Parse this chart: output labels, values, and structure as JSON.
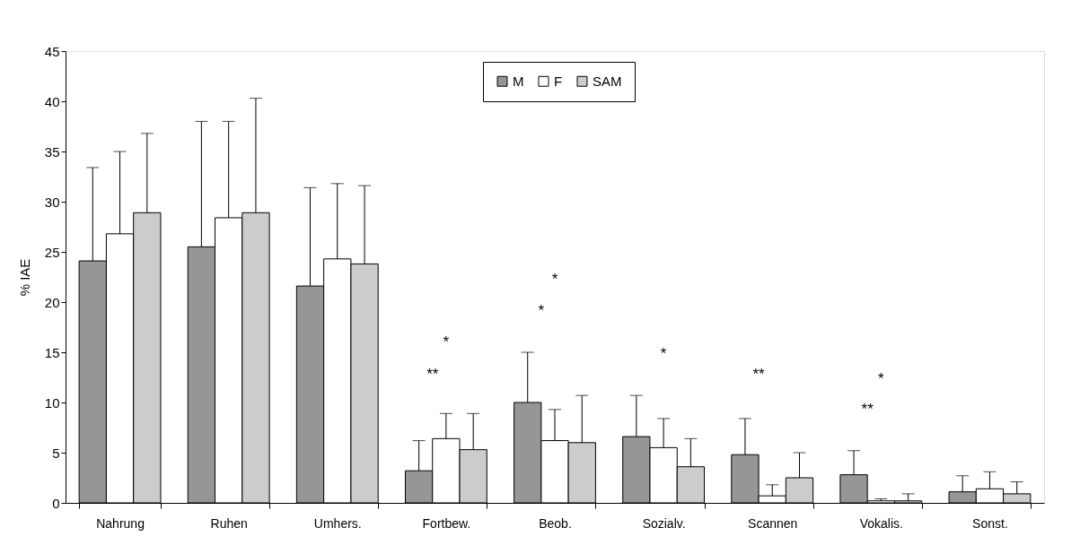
{
  "chart_data": {
    "type": "bar",
    "ylabel": "% IAE",
    "categories": [
      "Nahrung",
      "Ruhen",
      "Umhers.",
      "Fortbew.",
      "Beob.",
      "Sozialv.",
      "Scannen",
      "Vokalis.",
      "Sonst."
    ],
    "series": [
      {
        "name": "M",
        "color": "#969696",
        "values": [
          24.1,
          25.5,
          21.6,
          3.2,
          10.0,
          6.6,
          4.8,
          2.8,
          1.1
        ],
        "errors": [
          [
            24.1,
            33.4
          ],
          [
            25.5,
            38.0
          ],
          [
            21.6,
            31.4
          ],
          [
            3.2,
            6.2
          ],
          [
            10.0,
            15.0
          ],
          [
            6.6,
            10.7
          ],
          [
            4.8,
            8.4
          ],
          [
            2.8,
            5.2
          ],
          [
            1.1,
            2.7
          ]
        ]
      },
      {
        "name": "F",
        "color": "#ffffff",
        "values": [
          26.8,
          28.4,
          24.3,
          6.4,
          6.2,
          5.5,
          0.7,
          0.2,
          1.4
        ],
        "errors": [
          [
            26.8,
            35.0
          ],
          [
            28.4,
            38.0
          ],
          [
            24.3,
            31.8
          ],
          [
            6.4,
            8.9
          ],
          [
            6.2,
            9.3
          ],
          [
            5.5,
            8.4
          ],
          [
            0.7,
            1.8
          ],
          [
            0.2,
            0.4
          ],
          [
            1.4,
            3.1
          ]
        ]
      },
      {
        "name": "SAM",
        "color": "#cccccc",
        "values": [
          28.9,
          28.9,
          23.8,
          5.3,
          6.0,
          3.6,
          2.5,
          0.2,
          0.9
        ],
        "errors": [
          [
            28.9,
            36.8
          ],
          [
            28.9,
            40.3
          ],
          [
            23.8,
            31.6
          ],
          [
            5.3,
            8.9
          ],
          [
            6.0,
            10.7
          ],
          [
            3.6,
            6.4
          ],
          [
            2.5,
            5.0
          ],
          [
            0.2,
            0.9
          ],
          [
            0.9,
            2.1
          ]
        ]
      }
    ],
    "ylim": [
      0,
      45
    ],
    "yticks": [
      0,
      5,
      10,
      15,
      20,
      25,
      30,
      35,
      40,
      45
    ],
    "grid": false,
    "legend": "top",
    "annotations": [
      "**",
      "*",
      "*",
      "*",
      "*",
      "**",
      "**",
      "*"
    ]
  }
}
